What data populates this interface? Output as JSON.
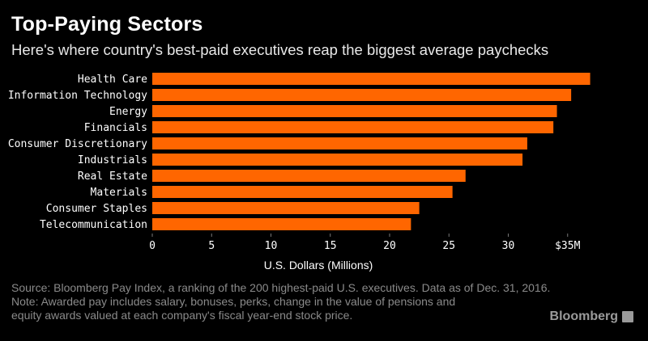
{
  "header": {
    "title": "Top-Paying Sectors",
    "subtitle": "Here's where country's best-paid executives reap the biggest average paychecks"
  },
  "chart_data": {
    "type": "bar",
    "orientation": "horizontal",
    "categories": [
      "Health Care",
      "Information Technology",
      "Energy",
      "Financials",
      "Consumer Discretionary",
      "Industrials",
      "Real Estate",
      "Materials",
      "Consumer Staples",
      "Telecommunication"
    ],
    "values": [
      36.9,
      35.3,
      34.1,
      33.8,
      31.6,
      31.2,
      26.4,
      25.3,
      22.5,
      21.8
    ],
    "xlabel": "U.S. Dollars (Millions)",
    "xlim": [
      0,
      37
    ],
    "xticks": [
      0,
      5,
      10,
      15,
      20,
      25,
      30,
      35
    ],
    "xtick_labels": [
      "0",
      "5",
      "10",
      "15",
      "20",
      "25",
      "30",
      "$35M"
    ],
    "bar_color": "#ff6600",
    "grid": false
  },
  "footer": {
    "line1": "Source: Bloomberg Pay Index, a ranking of the 200 highest-paid U.S. executives. Data as of Dec. 31, 2016.",
    "line2": "Note: Awarded pay includes salary, bonuses, perks, change in the value of pensions and",
    "line3": "equity awards valued at each company's fiscal year-end stock price."
  },
  "brand": {
    "name": "Bloomberg",
    "icon": "bloomberg-terminal-icon"
  }
}
